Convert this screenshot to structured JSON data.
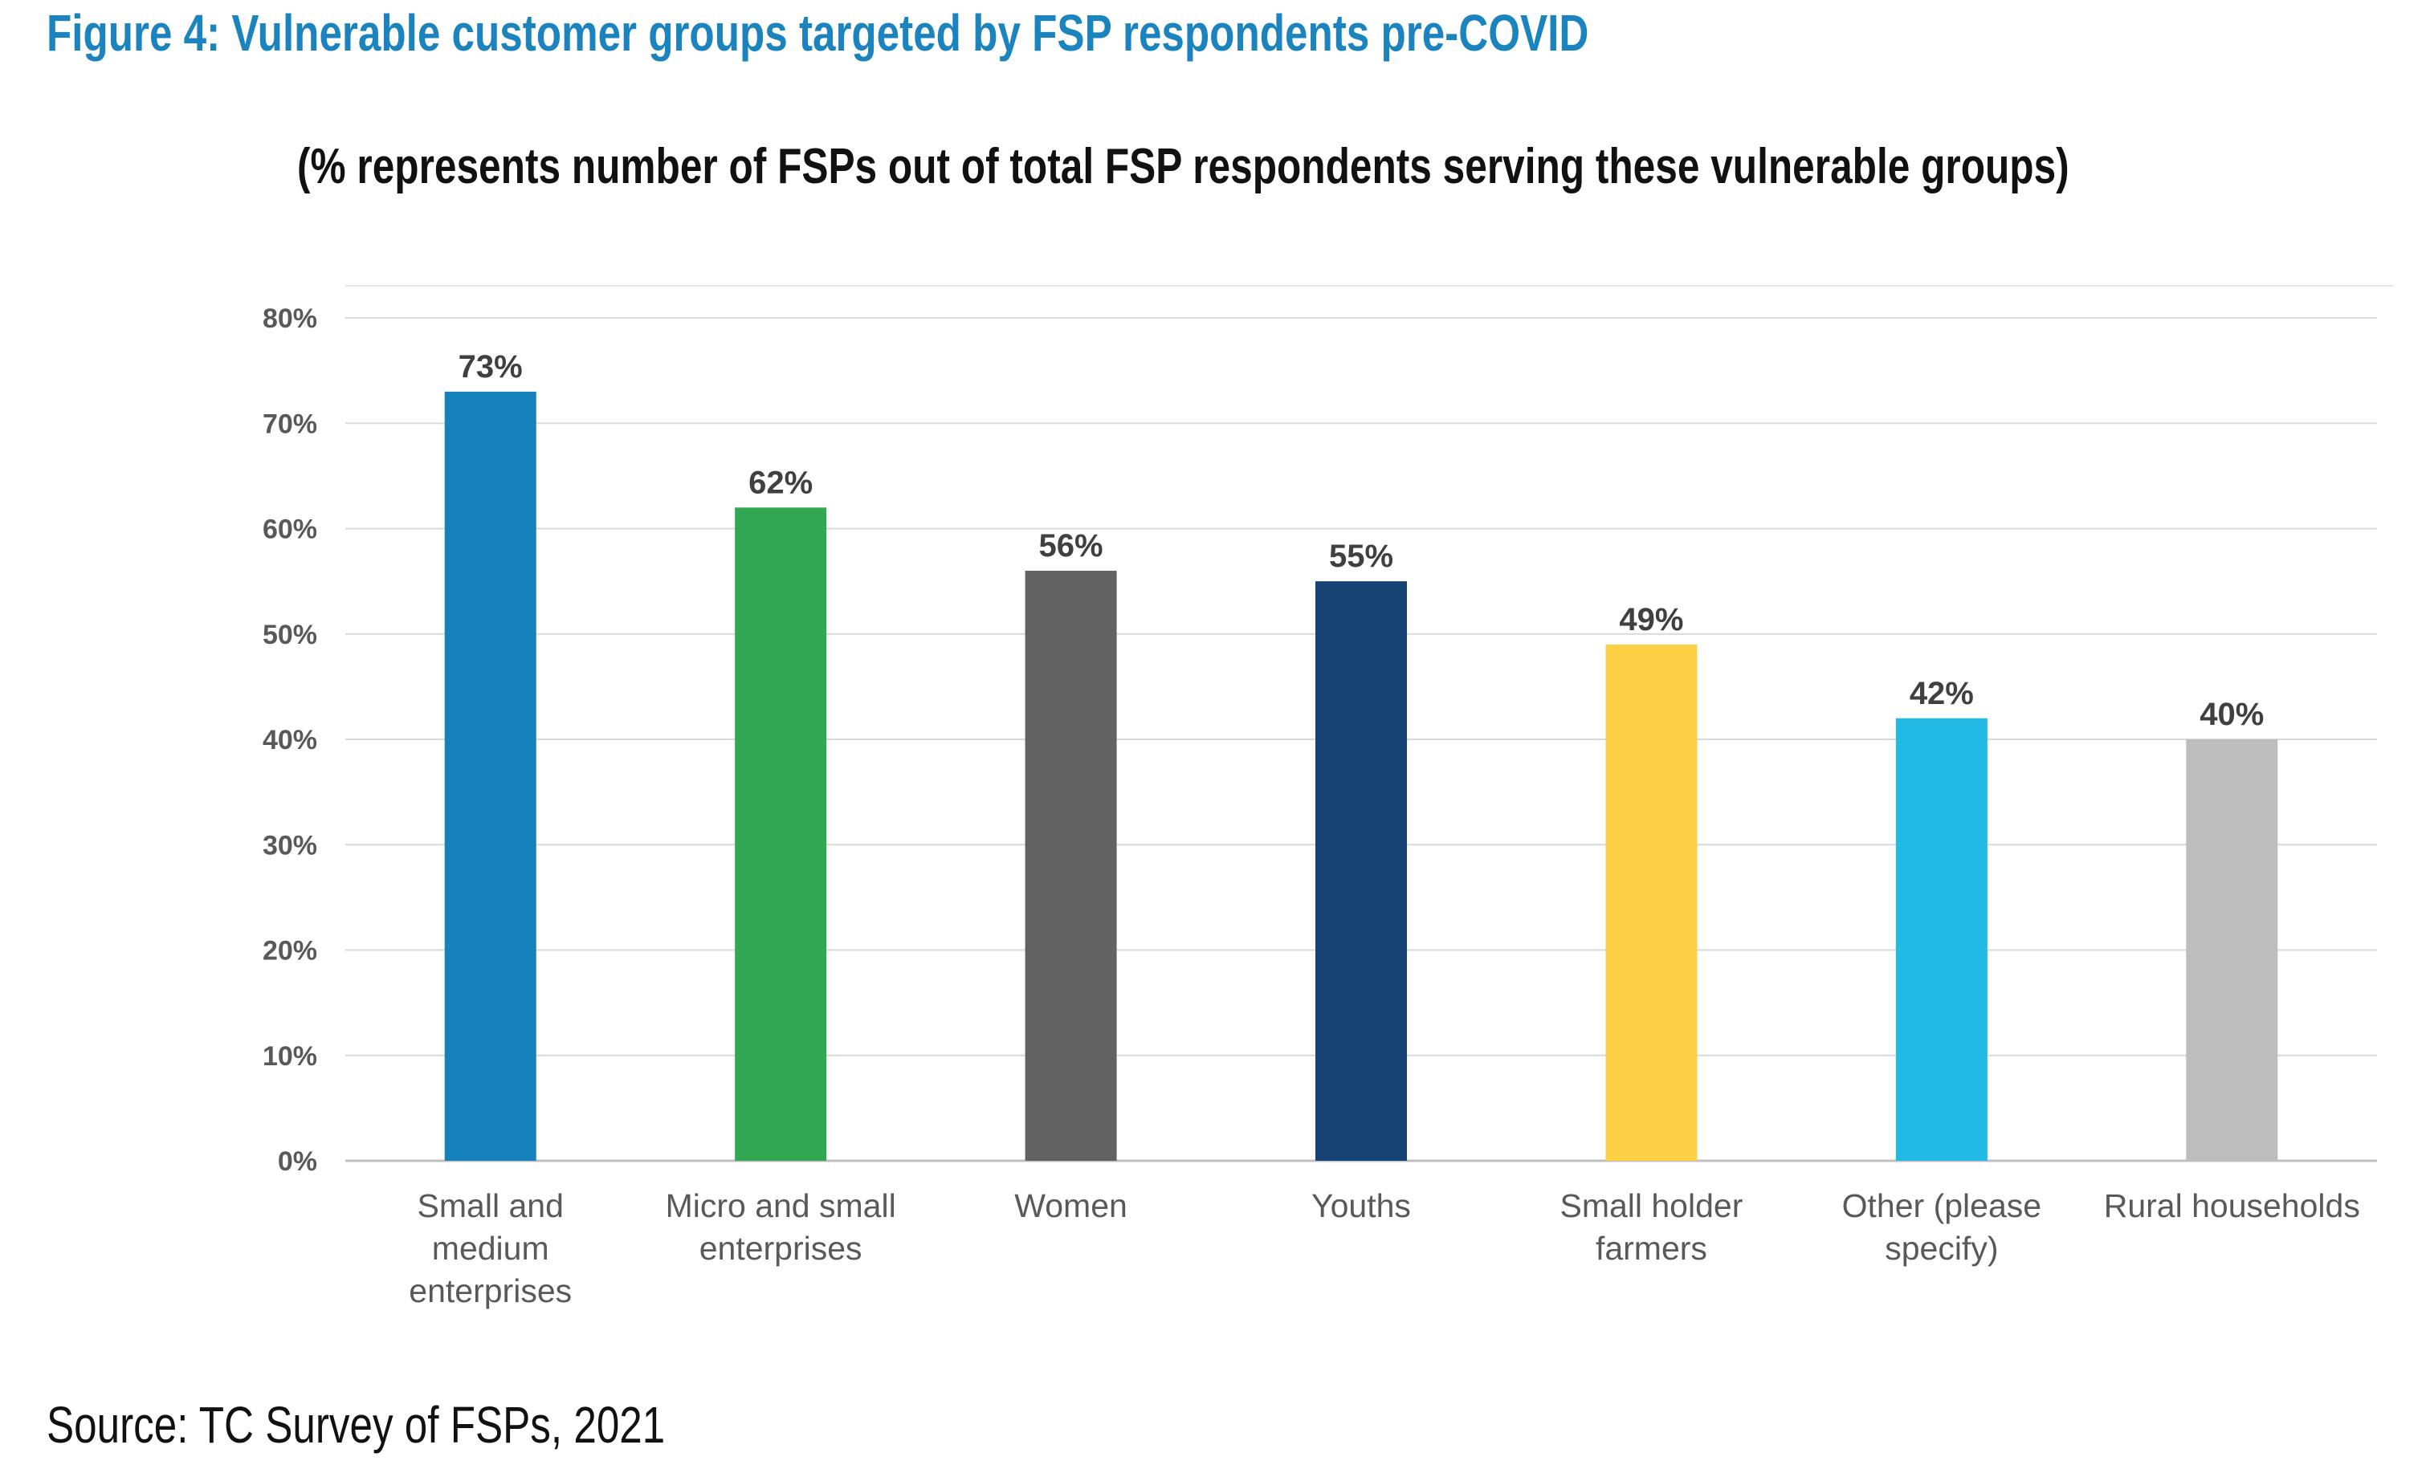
{
  "figure": {
    "title": "Figure 4: Vulnerable customer groups targeted by FSP respondents pre-COVID",
    "subtitle": "(% represents number of FSPs out of total FSP respondents serving these vulnerable groups)",
    "source": "Source: TC Survey of FSPs, 2021"
  },
  "chart_data": {
    "type": "bar",
    "title": "(% represents number of FSPs out of total FSP respondents serving these vulnerable groups)",
    "xlabel": "",
    "ylabel": "",
    "ylim": [
      0,
      80
    ],
    "yticks": [
      "0%",
      "10%",
      "20%",
      "30%",
      "40%",
      "50%",
      "60%",
      "70%",
      "80%"
    ],
    "grid": true,
    "legend": "none",
    "categories": [
      "Small and medium enterprises",
      "Micro and small enterprises",
      "Women",
      "Youths",
      "Small holder farmers",
      "Other (please specify)",
      "Rural households"
    ],
    "category_lines": [
      [
        "Small and",
        "medium",
        "enterprises"
      ],
      [
        "Micro and small",
        "enterprises"
      ],
      [
        "Women"
      ],
      [
        "Youths"
      ],
      [
        "Small holder",
        "farmers"
      ],
      [
        "Other (please",
        "specify)"
      ],
      [
        "Rural households"
      ]
    ],
    "values": [
      73,
      62,
      56,
      55,
      49,
      42,
      40
    ],
    "data_labels": [
      "73%",
      "62%",
      "56%",
      "55%",
      "49%",
      "42%",
      "40%"
    ],
    "colors": [
      "#1582bc",
      "#33a852",
      "#626262",
      "#174274",
      "#fccf44",
      "#22b9e5",
      "#bdbdbd"
    ]
  }
}
